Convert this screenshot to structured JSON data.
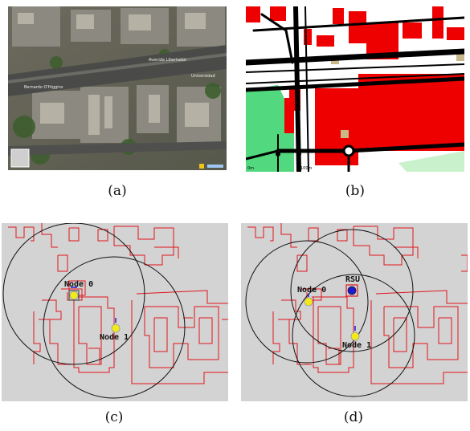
{
  "figure": {
    "panels": [
      {
        "id": "a",
        "caption": "(a)",
        "description_kind": "satellite-view"
      },
      {
        "id": "b",
        "caption": "(b)",
        "description_kind": "osm-map",
        "scale_left": "0m",
        "scale_right": "100m"
      },
      {
        "id": "c",
        "caption": "(c)",
        "node_labels": [
          "Node 0",
          "Node 1"
        ]
      },
      {
        "id": "d",
        "caption": "(d)",
        "node_labels": [
          "Node 0",
          "Node 1",
          "RSU"
        ]
      }
    ],
    "colors": {
      "building_outline": "#e0151b",
      "sim_background": "#d3d3d3",
      "osm_building": "#ee0000",
      "osm_green": "#52d87e",
      "node_yellow": "#f2ea1a",
      "rsu_blue": "#1b1bd6",
      "range_circle": "#111111"
    },
    "satellite_labels": [
      "Avenida Libertador",
      "Bernardo O'Higgins",
      "Universidad"
    ]
  }
}
